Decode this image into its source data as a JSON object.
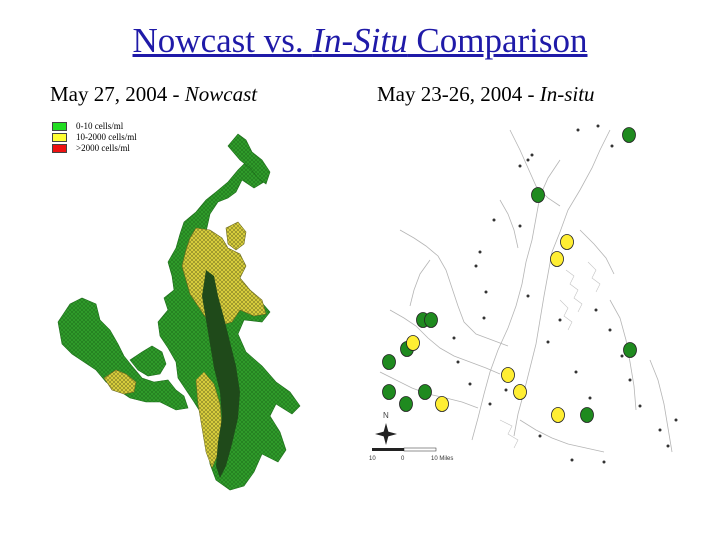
{
  "title": {
    "main": "Nowcast vs. ",
    "italic": "In-Situ",
    "tail": " Comparison"
  },
  "left_panel": {
    "caption_main": "May 27, 2004 - ",
    "caption_italic": "Nowcast",
    "legend": [
      {
        "label": "0-10 cells/ml",
        "color": "#22dd22"
      },
      {
        "label": "10-2000 cells/ml",
        "color": "#ffff33"
      },
      {
        "label": ">2000 cells/ml",
        "color": "#ee1111"
      }
    ],
    "map_colors": {
      "low": "#2f9a2a",
      "medium": "#d6cc3c",
      "dense_core": "#1f4a1a"
    }
  },
  "right_panel": {
    "caption_main": "May 23-26, 2004 - ",
    "caption_italic": "In-situ",
    "north_label": "N",
    "scale_labels": [
      "10",
      "0",
      "10 Miles"
    ],
    "marker_colors": {
      "low": "#1f8a1f",
      "medium": "#ffee33"
    },
    "stations": [
      {
        "category": "low"
      },
      {
        "category": "low"
      },
      {
        "category": "medium"
      },
      {
        "category": "medium"
      },
      {
        "category": "low"
      },
      {
        "category": "low"
      },
      {
        "category": "low"
      },
      {
        "category": "low"
      },
      {
        "category": "low"
      },
      {
        "category": "medium"
      },
      {
        "category": "low"
      },
      {
        "category": "low"
      },
      {
        "category": "low"
      },
      {
        "category": "medium"
      },
      {
        "category": "medium"
      },
      {
        "category": "medium"
      },
      {
        "category": "low"
      },
      {
        "category": "medium"
      }
    ]
  }
}
